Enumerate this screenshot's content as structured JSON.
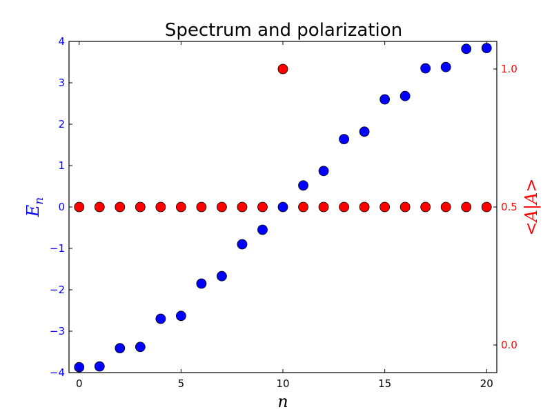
{
  "chart_data": {
    "type": "scatter",
    "title": "Spectrum and polarization",
    "xlabel": "n",
    "ylabel_left": "E_n",
    "ylabel_right": "<A|A>",
    "xlim": [
      -0.5,
      20.5
    ],
    "ylim_left": [
      -4,
      4
    ],
    "ylim_right": [
      -0.1,
      1.1
    ],
    "x_ticks": [
      0,
      5,
      10,
      15,
      20
    ],
    "y_ticks_left": [
      -4,
      -3,
      -2,
      -1,
      0,
      1,
      2,
      3,
      4
    ],
    "y_ticks_right": [
      0.0,
      0.5,
      1.0
    ],
    "x_tick_labels": [
      "0",
      "5",
      "10",
      "15",
      "20"
    ],
    "y_tick_labels_left": [
      "−4",
      "−3",
      "−2",
      "−1",
      "0",
      "1",
      "2",
      "3",
      "4"
    ],
    "y_tick_labels_right": [
      "0.0",
      "0.5",
      "1.0"
    ],
    "grid": false,
    "series": [
      {
        "axis": "left",
        "color": "#0000ff",
        "x": [
          0,
          1,
          2,
          3,
          4,
          5,
          6,
          7,
          8,
          9,
          10,
          11,
          12,
          13,
          14,
          15,
          16,
          17,
          18,
          19,
          20
        ],
        "values": [
          -3.87,
          -3.85,
          -3.41,
          -3.38,
          -2.7,
          -2.63,
          -1.85,
          -1.67,
          -0.9,
          -0.55,
          0.0,
          0.52,
          0.87,
          1.64,
          1.82,
          2.6,
          2.68,
          3.35,
          3.38,
          3.82,
          3.84
        ]
      },
      {
        "axis": "right",
        "color": "#ff0000",
        "x": [
          0,
          1,
          2,
          3,
          4,
          5,
          6,
          7,
          8,
          9,
          10,
          11,
          12,
          13,
          14,
          15,
          16,
          17,
          18,
          19,
          20
        ],
        "values": [
          0.5,
          0.5,
          0.5,
          0.5,
          0.5,
          0.5,
          0.5,
          0.5,
          0.5,
          0.5,
          1.0,
          0.5,
          0.5,
          0.5,
          0.5,
          0.5,
          0.5,
          0.5,
          0.5,
          0.5,
          0.5
        ]
      }
    ],
    "left_axis_color": "#0000ff",
    "right_axis_color": "#ff0000"
  }
}
